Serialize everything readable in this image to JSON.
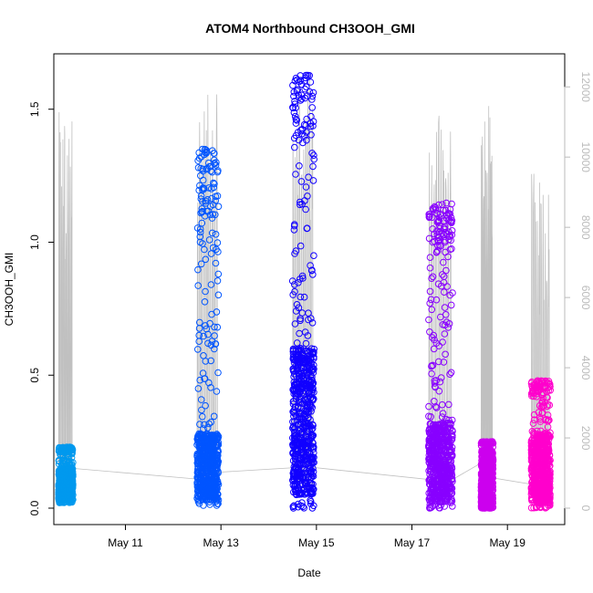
{
  "chart_data": {
    "type": "scatter",
    "title": "ATOM4 Northbound CH3OOH_GMI",
    "xlabel": "Date",
    "ylabel": "CH3OOH_GMI",
    "x_tick_labels": [
      "May 11",
      "May 13",
      "May 15",
      "May 17",
      "May 19"
    ],
    "x_tick_values": [
      11,
      13,
      15,
      17,
      19
    ],
    "xlim": [
      9.5,
      20.2
    ],
    "ylim": [
      0,
      1.65
    ],
    "y_ticks": [
      0.0,
      0.5,
      1.0,
      1.5
    ],
    "y_tick_labels": [
      "0.0",
      "0.5",
      "1.0",
      "1.5"
    ],
    "y2_ticks": [
      0,
      2000,
      4000,
      6000,
      8000,
      10000,
      12000
    ],
    "y2_tick_labels": [
      "0",
      "2000",
      "4000",
      "6000",
      "8000",
      "10000",
      "12000"
    ],
    "y2_lim": [
      0,
      12500
    ],
    "grid": false,
    "series": [
      {
        "color": "#0099ee",
        "x_range": [
          9.6,
          9.9
        ],
        "y_min": 0.02,
        "y_max": 0.23,
        "typical": [
          0.03,
          0.15
        ]
      },
      {
        "color": "#0055ff",
        "x_range": [
          12.5,
          12.95
        ],
        "y_min": 0.01,
        "y_max": 1.35,
        "typical": [
          0.03,
          0.28
        ]
      },
      {
        "color": "#1100ff",
        "x_range": [
          14.5,
          14.95
        ],
        "y_min": 0.0,
        "y_max": 1.64,
        "typical": [
          0.05,
          0.6
        ]
      },
      {
        "color": "#8800ff",
        "x_range": [
          17.35,
          17.85
        ],
        "y_min": 0.0,
        "y_max": 1.15,
        "typical": [
          0.02,
          0.32
        ]
      },
      {
        "color": "#cc00ee",
        "x_range": [
          18.45,
          18.7
        ],
        "y_min": 0.0,
        "y_max": 0.25,
        "typical": [
          0.0,
          0.22
        ]
      },
      {
        "color": "#ff00cc",
        "x_range": [
          19.5,
          19.9
        ],
        "y_min": 0.0,
        "y_max": 0.48,
        "typical": [
          0.02,
          0.28
        ]
      }
    ],
    "altitude_line_color": "#c0c0c0"
  }
}
